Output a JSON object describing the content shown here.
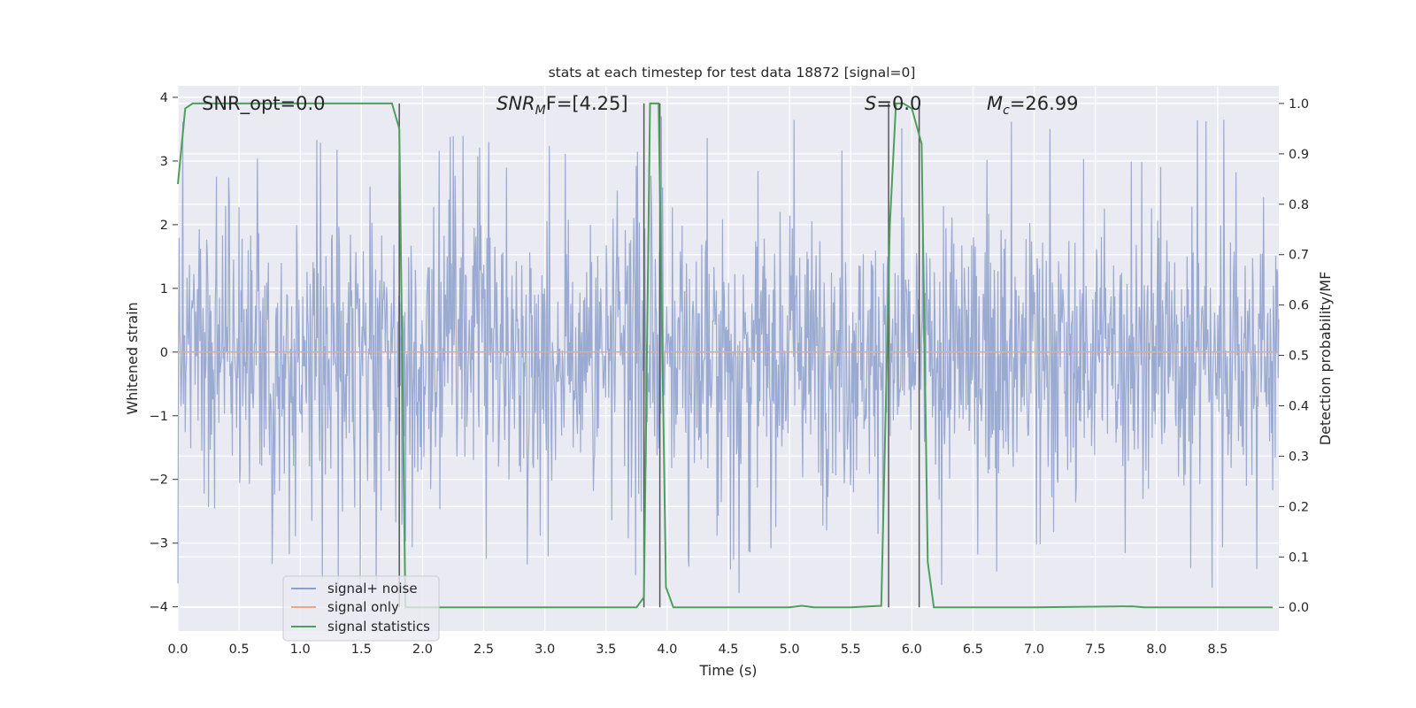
{
  "chart_data": {
    "type": "line",
    "title": "stats at each timestep for test data 18872 [signal=0]",
    "xlabel": "Time (s)",
    "ylabel": "Whitened strain",
    "ylabel_right": "Detection probability/MF",
    "xlim": [
      0,
      9.0
    ],
    "ylim": [
      -4.38,
      4.18
    ],
    "ylim_right": [
      -0.047,
      1.035
    ],
    "x_ticks": [
      "0.0",
      "0.5",
      "1.0",
      "1.5",
      "2.0",
      "2.5",
      "3.0",
      "3.5",
      "4.0",
      "4.5",
      "5.0",
      "5.5",
      "6.0",
      "6.5",
      "7.0",
      "7.5",
      "8.0",
      "8.5"
    ],
    "y_ticks": [
      "4",
      "3",
      "2",
      "1",
      "0",
      "−1",
      "−2",
      "−3",
      "−4"
    ],
    "y_ticks_right": [
      "1.0",
      "0.9",
      "0.8",
      "0.7",
      "0.6",
      "0.5",
      "0.4",
      "0.3",
      "0.2",
      "0.1",
      "0.0"
    ],
    "grid": true,
    "annotations": {
      "snr_opt": "SNR_opt=0.0",
      "snr_mf_base": "SNR",
      "snr_mf_sub": "M",
      "snr_mf_rest": "F=[4.25]",
      "s": "S",
      "s_rest": "=0.0",
      "mc": "M",
      "mc_sub": "c",
      "mc_rest": "=26.99"
    },
    "legend": {
      "position": "lower-left",
      "entries": [
        {
          "label": "signal+ noise",
          "color": "#8c9fcb"
        },
        {
          "label": "signal only",
          "color": "#e8a98a"
        },
        {
          "label": "signal statistics",
          "color": "#4e9f5d"
        }
      ]
    },
    "series": [
      {
        "name": "signal+ noise",
        "color": "#8c9fcb",
        "description": "dense whitened noise, typical range -2.2 to 2.2, peaks up to about 3.7 and down to about -3.9",
        "envelope": {
          "typical": 2.2,
          "max": 3.7,
          "min": -3.9
        }
      },
      {
        "name": "signal only",
        "color": "#e8a98a",
        "values_constant": 0
      },
      {
        "name": "signal statistics",
        "color": "#4e9f5d",
        "axis": "right",
        "x": [
          0.0,
          0.06,
          0.12,
          0.4,
          0.9,
          1.4,
          1.75,
          1.81,
          1.86,
          1.92,
          3.75,
          3.81,
          3.86,
          3.93,
          3.99,
          4.05,
          4.4,
          5.0,
          5.1,
          5.2,
          5.5,
          5.75,
          5.82,
          5.87,
          5.93,
          6.0,
          6.08,
          6.13,
          6.18,
          6.23,
          7.0,
          7.8,
          7.9,
          8.95
        ],
        "y": [
          0.84,
          0.99,
          1.0,
          1.0,
          1.0,
          1.0,
          1.0,
          0.95,
          0.0,
          0.0,
          0.0,
          0.02,
          1.0,
          1.0,
          0.04,
          0.0,
          0.0,
          0.0,
          0.003,
          0.0,
          0.0,
          0.003,
          0.76,
          1.0,
          1.0,
          0.99,
          0.92,
          0.09,
          0.0,
          0.0,
          0.0,
          0.002,
          0.0,
          0.0
        ]
      }
    ],
    "vlines": [
      1.81,
      3.81,
      3.94,
      5.81,
      6.06
    ]
  }
}
